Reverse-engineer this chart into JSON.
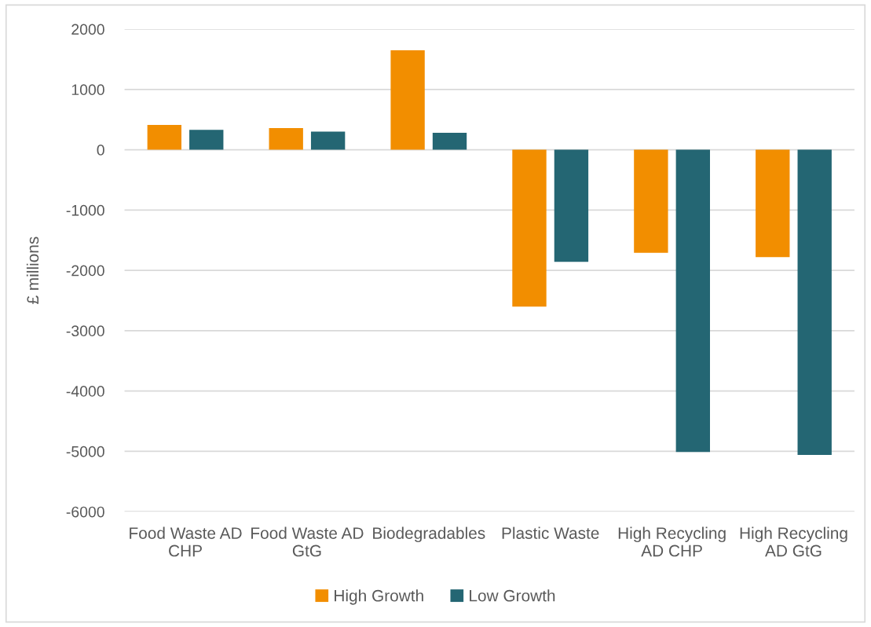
{
  "chart_data": {
    "type": "bar",
    "ylabel": "£ millions",
    "categories": [
      "Food Waste AD CHP",
      "Food Waste AD GtG",
      "Biodegradables",
      "Plastic Waste",
      "High Recycling AD CHP",
      "High Recycling AD GtG"
    ],
    "series": [
      {
        "name": "High Growth",
        "color": "#f28e00",
        "values": [
          410,
          360,
          1650,
          -2600,
          -1710,
          -1780
        ]
      },
      {
        "name": "Low Growth",
        "color": "#246673",
        "values": [
          330,
          300,
          280,
          -1860,
          -5010,
          -5060
        ]
      }
    ],
    "ylim": [
      -6000,
      2000
    ],
    "yticks": [
      -6000,
      -5000,
      -4000,
      -3000,
      -2000,
      -1000,
      0,
      1000,
      2000
    ],
    "grid": "y",
    "legend": "bottom"
  }
}
